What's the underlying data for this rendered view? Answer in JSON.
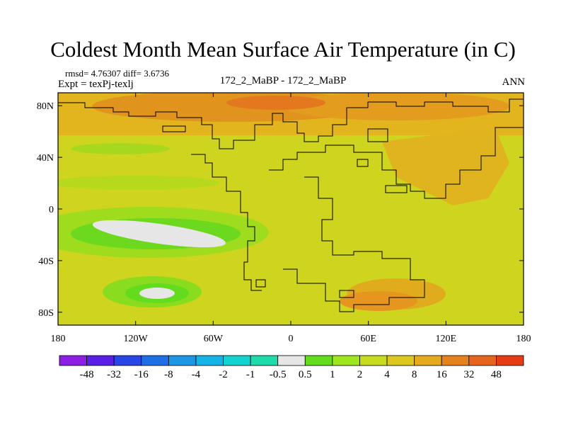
{
  "chart_data": {
    "type": "heatmap",
    "title": "Coldest Month Mean Surface Air Temperature (in C)",
    "stats_line": "rmsd= 4.76307 diff= 3.6736",
    "experiment": "Expt = texPj-texlj",
    "case": "172_2_MaBP - 172_2_MaBP",
    "season": "ANN",
    "x_ticks": [
      "180",
      "120W",
      "60W",
      "0",
      "60E",
      "120E",
      "180"
    ],
    "x_values": [
      -180,
      -120,
      -60,
      0,
      60,
      120,
      180
    ],
    "y_ticks": [
      "80N",
      "40N",
      "0",
      "40S",
      "80S"
    ],
    "y_values": [
      80,
      40,
      0,
      -40,
      -80
    ],
    "xlim": [
      -180,
      180
    ],
    "ylim": [
      -90,
      90
    ],
    "colorbar": {
      "labels": [
        "-48",
        "-32",
        "-16",
        "-8",
        "-4",
        "-2",
        "-1",
        "-0.5",
        "0.5",
        "1",
        "2",
        "4",
        "8",
        "16",
        "32",
        "48"
      ],
      "colors": [
        "#8c1ee6",
        "#5a1ee6",
        "#2846e6",
        "#1e6ee6",
        "#1e96e6",
        "#14b4e6",
        "#14d2d2",
        "#1edcaa",
        "#e6e6e6",
        "#64dc1e",
        "#a0e61e",
        "#c8dc1e",
        "#dcc81e",
        "#e6aa1e",
        "#e6821e",
        "#e6641e",
        "#e63c14"
      ]
    }
  }
}
